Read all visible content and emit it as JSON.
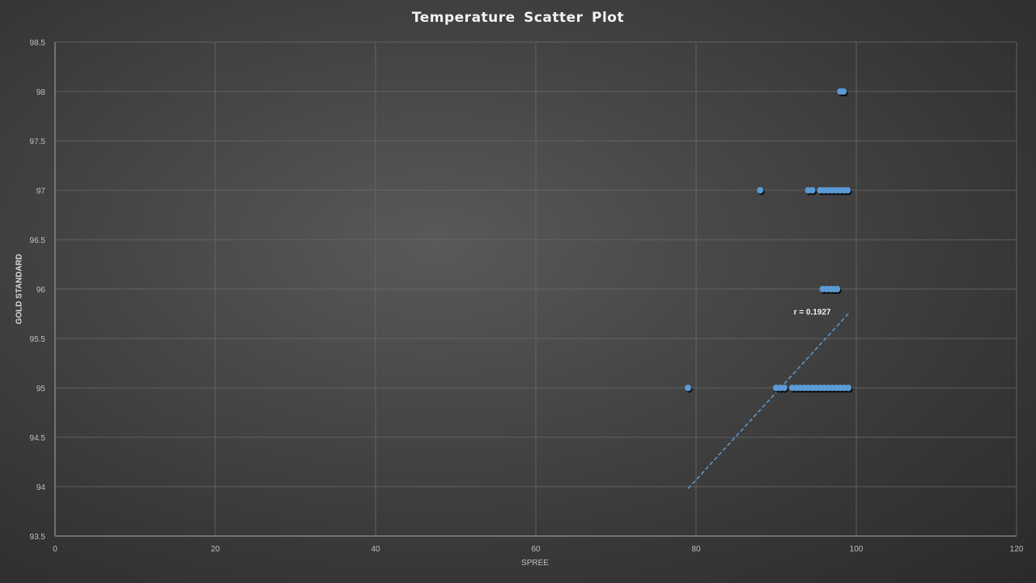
{
  "chart_data": {
    "type": "scatter",
    "title": "Temperature Scatter Plot",
    "xlabel": "SPREE",
    "ylabel": "GOLD STANDARD",
    "xlim": [
      0,
      120
    ],
    "ylim": [
      93.5,
      98.5
    ],
    "x_ticks": [
      0,
      20,
      40,
      60,
      80,
      100,
      120
    ],
    "y_ticks": [
      93.5,
      94,
      94.5,
      95,
      95.5,
      96,
      96.5,
      97,
      97.5,
      98,
      98.5
    ],
    "grid": true,
    "legend": "none",
    "point_color": "#5b9bd5",
    "series": [
      {
        "points": [
          {
            "x": 98.0,
            "y": 98
          },
          {
            "x": 98.4,
            "y": 98
          },
          {
            "x": 88.0,
            "y": 97
          },
          {
            "x": 94.0,
            "y": 97
          },
          {
            "x": 94.5,
            "y": 97
          },
          {
            "x": 95.5,
            "y": 97
          },
          {
            "x": 96.0,
            "y": 97
          },
          {
            "x": 96.5,
            "y": 97
          },
          {
            "x": 97.0,
            "y": 97
          },
          {
            "x": 97.5,
            "y": 97
          },
          {
            "x": 98.0,
            "y": 97
          },
          {
            "x": 98.5,
            "y": 97
          },
          {
            "x": 98.9,
            "y": 97
          },
          {
            "x": 95.8,
            "y": 96
          },
          {
            "x": 96.3,
            "y": 96
          },
          {
            "x": 96.8,
            "y": 96
          },
          {
            "x": 97.2,
            "y": 96
          },
          {
            "x": 97.6,
            "y": 96
          },
          {
            "x": 79.0,
            "y": 95
          },
          {
            "x": 90.0,
            "y": 95
          },
          {
            "x": 90.5,
            "y": 95
          },
          {
            "x": 91.0,
            "y": 95
          },
          {
            "x": 92.0,
            "y": 95
          },
          {
            "x": 92.5,
            "y": 95
          },
          {
            "x": 93.0,
            "y": 95
          },
          {
            "x": 93.5,
            "y": 95
          },
          {
            "x": 94.0,
            "y": 95
          },
          {
            "x": 94.5,
            "y": 95
          },
          {
            "x": 95.0,
            "y": 95
          },
          {
            "x": 95.5,
            "y": 95
          },
          {
            "x": 96.0,
            "y": 95
          },
          {
            "x": 96.5,
            "y": 95
          },
          {
            "x": 97.0,
            "y": 95
          },
          {
            "x": 97.5,
            "y": 95
          },
          {
            "x": 98.0,
            "y": 95
          },
          {
            "x": 98.5,
            "y": 95
          },
          {
            "x": 99.0,
            "y": 95
          }
        ]
      }
    ],
    "trendline": {
      "style": "dashed",
      "color": "#5b9bd5",
      "start": {
        "x": 79,
        "y": 93.98
      },
      "end": {
        "x": 99,
        "y": 95.75
      }
    },
    "annotations": [
      {
        "text": "r = 0.1927",
        "x": 94.5,
        "y": 95.74
      }
    ]
  }
}
